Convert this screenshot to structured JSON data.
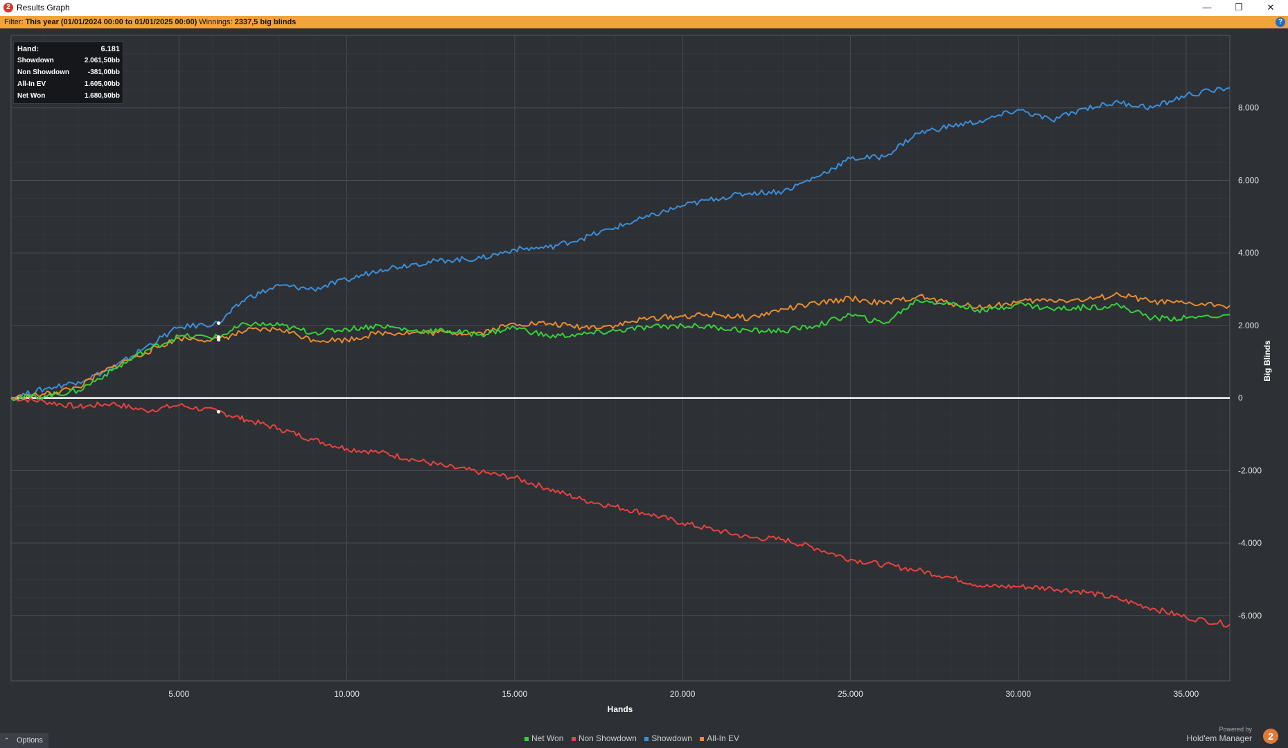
{
  "window": {
    "title": "Results Graph",
    "minimize_glyph": "—",
    "restore_glyph": "❐",
    "close_glyph": "✕",
    "app_icon_glyph": "2"
  },
  "filter": {
    "label": "Filter:",
    "value": "This year (01/01/2024 00:00 to 01/01/2025 00:00)",
    "winnings_label": "Winnings:",
    "winnings_value": "2337,5 big blinds",
    "help_glyph": "?"
  },
  "tooltip": {
    "rows": [
      {
        "label": "Hand:",
        "value": "6.181"
      },
      {
        "label": "Showdown",
        "value": "2.061,50bb"
      },
      {
        "label": "Non Showdown",
        "value": "-381,00bb"
      },
      {
        "label": "All-In EV",
        "value": "1.605,00bb"
      },
      {
        "label": "Net Won",
        "value": "1.680,50bb"
      }
    ]
  },
  "options": {
    "label": "Options",
    "caret": "⌃"
  },
  "legend": [
    {
      "name": "Net Won",
      "color": "#36d13a"
    },
    {
      "name": "Non Showdown",
      "color": "#e8433f"
    },
    {
      "name": "Showdown",
      "color": "#3b8fd9"
    },
    {
      "name": "All-In EV",
      "color": "#e88c2f"
    }
  ],
  "branding": {
    "powered_by": "Powered by",
    "product": "Hold'em Manager",
    "logo_glyph": "2"
  },
  "colors": {
    "background": "#2d3035",
    "grid": "#4a4d52",
    "zero_line": "#ffffff",
    "filter_bar": "#f2a33a"
  },
  "chart_data": {
    "type": "line",
    "xlabel": "Hands",
    "ylabel": "Big Blinds",
    "xlim": [
      0,
      36300
    ],
    "ylim": [
      -7800,
      10000
    ],
    "xticks": [
      5000,
      10000,
      15000,
      20000,
      25000,
      30000,
      35000
    ],
    "xtick_labels": [
      "5.000",
      "10.000",
      "15.000",
      "20.000",
      "25.000",
      "30.000",
      "35.000"
    ],
    "yticks": [
      8000,
      6000,
      4000,
      2000,
      0,
      -2000,
      -4000,
      -6000
    ],
    "ytick_labels": [
      "8.000",
      "6.000",
      "4.000",
      "2.000",
      "0",
      "-2.000",
      "-4.000",
      "-6.000"
    ],
    "grid": true,
    "legend_position": "bottom-center",
    "x": [
      0,
      1000,
      2000,
      3000,
      4000,
      5000,
      6181,
      7000,
      8000,
      9000,
      10000,
      11000,
      12000,
      13000,
      14000,
      15000,
      16000,
      17000,
      18000,
      19000,
      20000,
      21000,
      22000,
      23000,
      24000,
      25000,
      26000,
      27000,
      28000,
      29000,
      30000,
      31000,
      32000,
      33000,
      34000,
      35000,
      36300
    ],
    "series": [
      {
        "name": "Showdown",
        "color": "#3b8fd9",
        "values": [
          0,
          250,
          450,
          800,
          1400,
          1950,
          2062,
          2750,
          3100,
          3000,
          3250,
          3550,
          3700,
          3800,
          3850,
          4100,
          4150,
          4400,
          4700,
          5000,
          5300,
          5500,
          5650,
          5700,
          6100,
          6600,
          6650,
          7300,
          7500,
          7650,
          7950,
          7650,
          8000,
          8150,
          8000,
          8350,
          8550
        ]
      },
      {
        "name": "Non Showdown",
        "color": "#e8433f",
        "values": [
          0,
          -100,
          -250,
          -150,
          -350,
          -200,
          -381,
          -600,
          -850,
          -1150,
          -1400,
          -1500,
          -1700,
          -1900,
          -2050,
          -2200,
          -2500,
          -2800,
          -3000,
          -3200,
          -3450,
          -3650,
          -3850,
          -3900,
          -4150,
          -4450,
          -4600,
          -4750,
          -4950,
          -5200,
          -5200,
          -5250,
          -5350,
          -5550,
          -5800,
          -6050,
          -6250
        ]
      },
      {
        "name": "All-In EV",
        "color": "#e88c2f",
        "values": [
          0,
          100,
          300,
          850,
          1250,
          1650,
          1605,
          1850,
          1900,
          1600,
          1600,
          1800,
          1800,
          1800,
          1800,
          2050,
          2050,
          1950,
          2000,
          2200,
          2250,
          2300,
          2200,
          2450,
          2600,
          2750,
          2600,
          2800,
          2600,
          2500,
          2650,
          2700,
          2700,
          2850,
          2650,
          2600,
          2550
        ]
      },
      {
        "name": "Net Won",
        "color": "#36d13a",
        "values": [
          0,
          50,
          200,
          750,
          1300,
          1700,
          1681,
          2050,
          2000,
          1800,
          1900,
          2000,
          1850,
          1850,
          1750,
          1950,
          1700,
          1750,
          1850,
          1950,
          2000,
          1950,
          1850,
          1850,
          2000,
          2300,
          2050,
          2700,
          2600,
          2400,
          2600,
          2450,
          2500,
          2550,
          2200,
          2200,
          2300
        ]
      }
    ]
  }
}
